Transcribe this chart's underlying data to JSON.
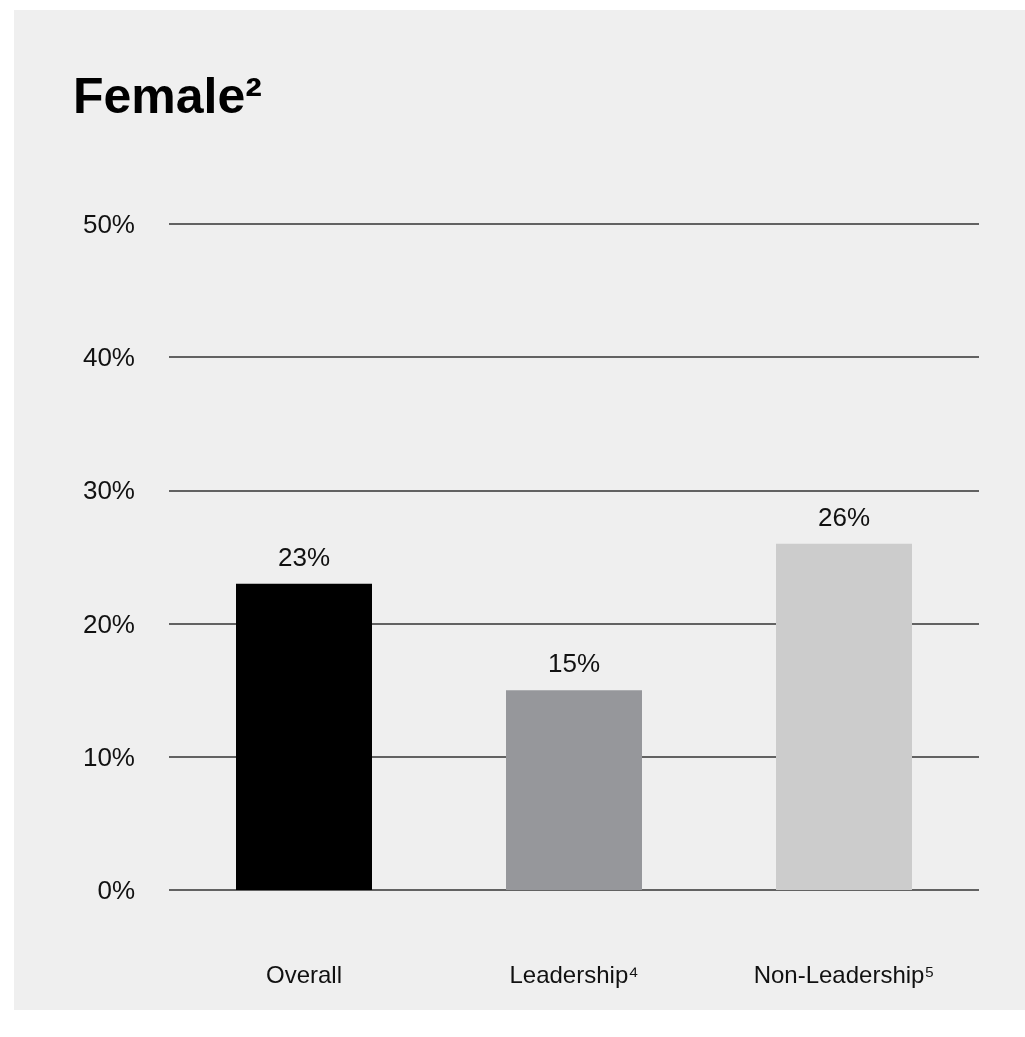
{
  "chart_data": {
    "type": "bar",
    "title": "Female²",
    "categories": [
      "Overall",
      "Leadership⁴",
      "Non-Leadership⁵"
    ],
    "values": [
      23,
      15,
      26
    ],
    "colors": [
      "#000000",
      "#96979b",
      "#cccccc"
    ],
    "value_labels": [
      "23%",
      "15%",
      "26%"
    ],
    "ylim": [
      0,
      50
    ],
    "yticks": [
      {
        "value": 0,
        "label": "0%"
      },
      {
        "value": 10,
        "label": "10%"
      },
      {
        "value": 20,
        "label": "20%"
      },
      {
        "value": 30,
        "label": "30%"
      },
      {
        "value": 40,
        "label": "40%"
      },
      {
        "value": 50,
        "label": "50%"
      }
    ],
    "grid": "y"
  }
}
